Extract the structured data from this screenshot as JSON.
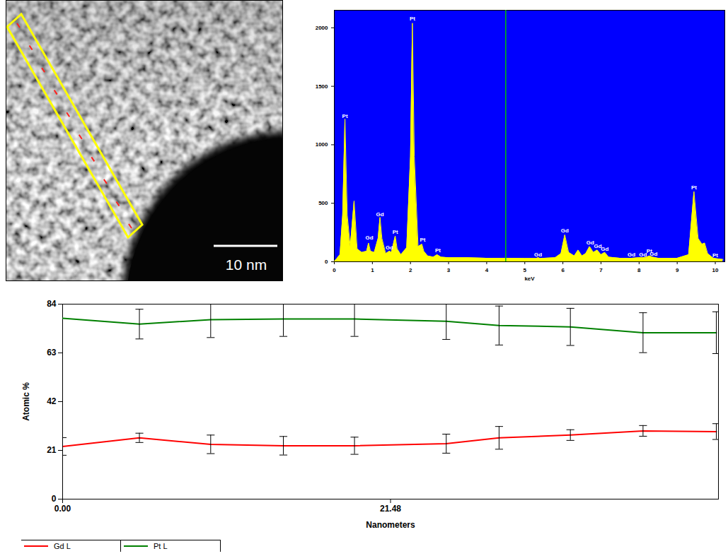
{
  "chart_data": [
    {
      "type": "image",
      "annotations": [
        "10 nm"
      ]
    },
    {
      "type": "area",
      "xlabel": "keV",
      "x": [
        0,
        0.15,
        0.22,
        0.28,
        0.34,
        0.42,
        0.52,
        0.6,
        0.72,
        0.85,
        0.9,
        0.95,
        1.05,
        1.15,
        1.2,
        1.25,
        1.35,
        1.45,
        1.5,
        1.55,
        1.6,
        1.65,
        1.75,
        1.9,
        2.0,
        2.05,
        2.1,
        2.2,
        2.3,
        2.35,
        2.45,
        2.6,
        2.7,
        2.8,
        3.0,
        3.5,
        4.0,
        4.5,
        5.0,
        5.3,
        5.35,
        5.4,
        5.8,
        5.95,
        6.05,
        6.15,
        6.3,
        6.4,
        6.5,
        6.6,
        6.7,
        6.8,
        6.9,
        7.0,
        7.1,
        7.2,
        7.5,
        7.8,
        8.0,
        8.1,
        8.2,
        8.27,
        8.35,
        8.5,
        9.0,
        9.3,
        9.44,
        9.55,
        9.65,
        9.72,
        9.8,
        9.95,
        10.05,
        10.2
      ],
      "values": [
        0,
        60,
        400,
        1220,
        400,
        130,
        520,
        110,
        80,
        90,
        160,
        90,
        80,
        200,
        380,
        200,
        70,
        90,
        80,
        150,
        220,
        110,
        60,
        120,
        900,
        2040,
        900,
        130,
        150,
        90,
        50,
        40,
        60,
        40,
        35,
        35,
        30,
        30,
        28,
        28,
        35,
        28,
        35,
        70,
        230,
        80,
        50,
        100,
        50,
        70,
        130,
        80,
        100,
        60,
        80,
        40,
        30,
        30,
        35,
        35,
        40,
        50,
        40,
        30,
        30,
        60,
        600,
        200,
        150,
        160,
        70,
        30,
        25,
        20
      ],
      "color": "#ffff00",
      "xlim": [
        0,
        10.25
      ],
      "xticks": [
        0,
        1,
        2,
        3,
        4,
        5,
        6,
        7,
        8,
        9,
        10
      ],
      "ylim": [
        0,
        2150
      ],
      "yticks": [
        0,
        500,
        1000,
        1500,
        2000
      ],
      "vlines": [
        {
          "x": 4.5,
          "color": "#00c000"
        }
      ],
      "annotations": [
        {
          "text": "Pt",
          "x": 0.28,
          "y": 1230
        },
        {
          "text": "Gd",
          "x": 0.92,
          "y": 190
        },
        {
          "text": "Gd",
          "x": 1.2,
          "y": 390
        },
        {
          "text": "Gd",
          "x": 1.45,
          "y": 105
        },
        {
          "text": "Pt",
          "x": 1.6,
          "y": 240
        },
        {
          "text": "Pt",
          "x": 2.05,
          "y": 2060
        },
        {
          "text": "Pt",
          "x": 2.32,
          "y": 170
        },
        {
          "text": "Pt",
          "x": 2.72,
          "y": 80
        },
        {
          "text": "Gd",
          "x": 5.35,
          "y": 45
        },
        {
          "text": "Gd",
          "x": 6.05,
          "y": 250
        },
        {
          "text": "Gd",
          "x": 6.72,
          "y": 150
        },
        {
          "text": "Gd",
          "x": 6.92,
          "y": 120
        },
        {
          "text": "Gd",
          "x": 7.1,
          "y": 95
        },
        {
          "text": "Gd",
          "x": 7.8,
          "y": 45
        },
        {
          "text": "Gd",
          "x": 8.1,
          "y": 45
        },
        {
          "text": "Pt",
          "x": 8.27,
          "y": 75
        },
        {
          "text": "Gd",
          "x": 8.38,
          "y": 50
        },
        {
          "text": "Pt",
          "x": 9.44,
          "y": 620
        },
        {
          "text": "Pt",
          "x": 10.0,
          "y": 40
        }
      ]
    },
    {
      "type": "line",
      "xlabel": "Nanometers",
      "ylabel": "Atomic %",
      "x": [
        0,
        5.03,
        9.7,
        14.46,
        19.12,
        25.13,
        28.59,
        33.26,
        38.02,
        42.82
      ],
      "series": [
        {
          "name": "Gd L",
          "color": "#ff0000",
          "values": [
            22.7,
            26.4,
            23.6,
            23.0,
            23.0,
            23.9,
            26.4,
            27.6,
            29.4,
            29.1
          ],
          "errors": [
            3.8,
            2,
            4,
            4,
            3.7,
            4.1,
            4.9,
            2.3,
            2.3,
            3.4
          ]
        },
        {
          "name": "Pt L",
          "color": "#008000",
          "values": [
            77.9,
            75.4,
            77.3,
            77.6,
            77.6,
            76.6,
            74.8,
            74.2,
            71.7,
            71.7
          ],
          "errors": [
            null,
            6.4,
            7.7,
            7.5,
            7.5,
            7.8,
            8.4,
            8.0,
            8.6,
            9
          ]
        }
      ],
      "xlim": [
        0,
        42.96
      ],
      "xticks": [
        {
          "value": 0,
          "label": "0.00"
        },
        21.48
      ],
      "ylim": [
        0,
        84
      ],
      "yticks": [
        0,
        21,
        42,
        63,
        84
      ],
      "legend": "bottom"
    }
  ]
}
